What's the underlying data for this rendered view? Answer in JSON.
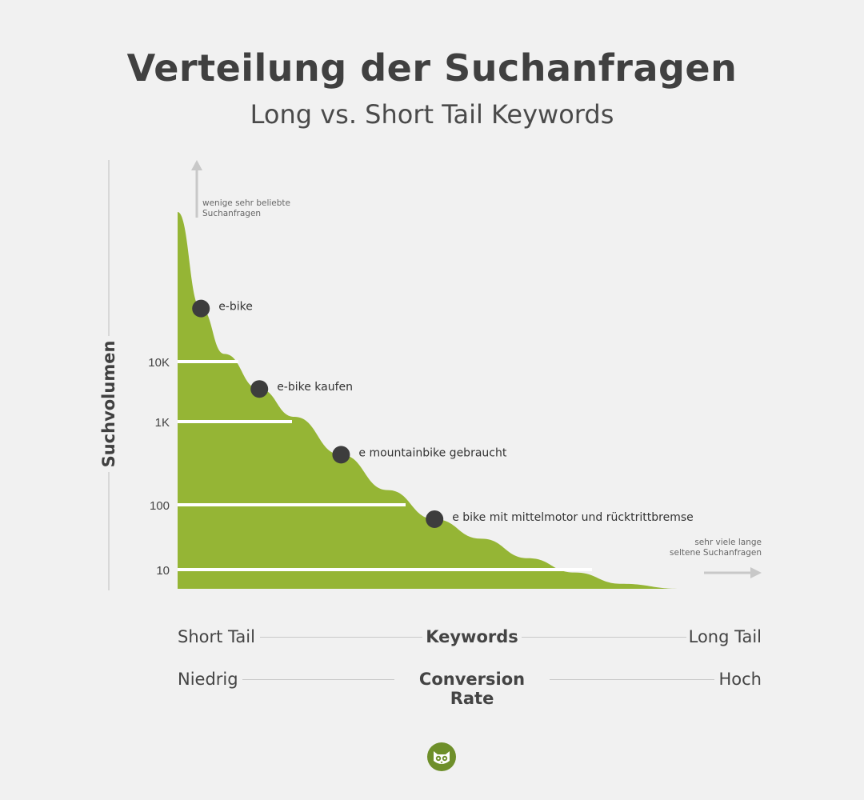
{
  "title": "Verteilung der Suchanfragen",
  "subtitle": "Long vs. Short Tail Keywords",
  "colors": {
    "fill": "#95b535",
    "point": "#3d3d3d",
    "text": "#404040",
    "arrow": "#c8c8c8",
    "logo": "#6e8f2a"
  },
  "chart_data": {
    "type": "area",
    "ylabel": "Suchvolumen",
    "y_scale": "log",
    "y_ticks": [
      "10K",
      "1K",
      "100",
      "10"
    ],
    "curve": [
      {
        "x": 0,
        "y": 1000000
      },
      {
        "x": 0.04,
        "y": 35000
      },
      {
        "x": 0.08,
        "y": 12000
      },
      {
        "x": 0.14,
        "y": 3500
      },
      {
        "x": 0.2,
        "y": 1200
      },
      {
        "x": 0.28,
        "y": 400
      },
      {
        "x": 0.36,
        "y": 150
      },
      {
        "x": 0.44,
        "y": 60
      },
      {
        "x": 0.52,
        "y": 30
      },
      {
        "x": 0.6,
        "y": 15
      },
      {
        "x": 0.68,
        "y": 9
      },
      {
        "x": 0.76,
        "y": 6
      },
      {
        "x": 0.86,
        "y": 5
      },
      {
        "x": 1.0,
        "y": 5
      }
    ],
    "points": [
      {
        "label": "e-bike",
        "x": 0.04,
        "y": 35000
      },
      {
        "label": "e-bike kaufen",
        "x": 0.14,
        "y": 3500
      },
      {
        "label": "e mountainbike gebraucht",
        "x": 0.28,
        "y": 400
      },
      {
        "label": "e bike mit mittelmotor und rücktrittbremse",
        "x": 0.44,
        "y": 60
      }
    ],
    "annotations": {
      "top": [
        "wenige sehr beliebte",
        "Suchanfragen"
      ],
      "right": [
        "sehr viele lange",
        "seltene Suchanfragen"
      ]
    }
  },
  "rows": [
    {
      "left": "Short Tail",
      "center": "Keywords",
      "right": "Long Tail"
    },
    {
      "left": "Niedrig",
      "center": "Conversion Rate",
      "right": "Hoch"
    }
  ],
  "logo_icon": "owl-icon"
}
